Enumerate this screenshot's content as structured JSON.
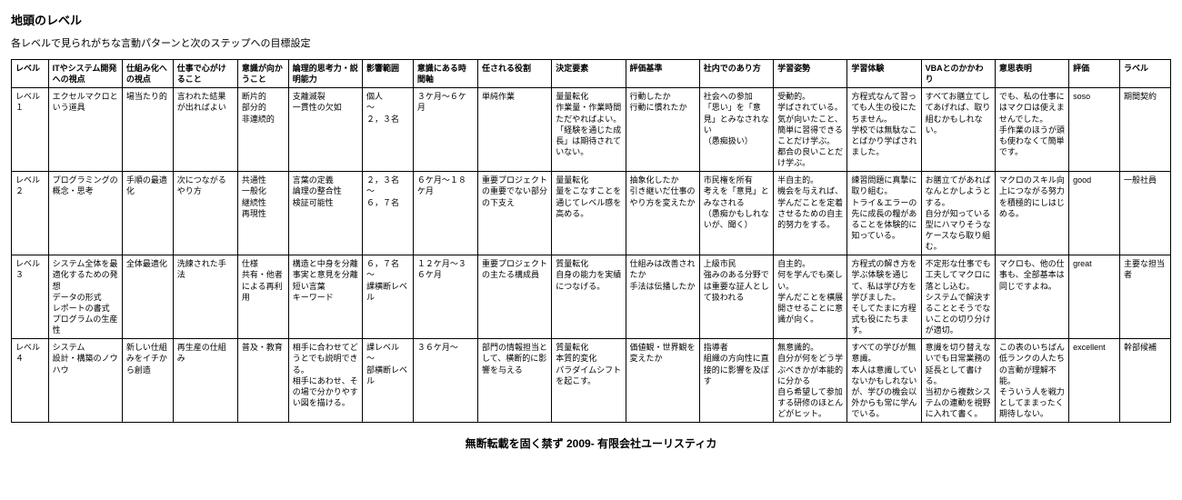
{
  "title": "地頭のレベル",
  "subtitle": "各レベルで見られがちな言動パターンと次のステップへの目標設定",
  "footer": "無断転載を固く禁ず  2009-  有限会社ユーリスティカ",
  "columns": [
    "レベル",
    "ITやシステム開発への視点",
    "仕組み化への視点",
    "仕事で心がけること",
    "意識が向かうこと",
    "論理的思考力・説明能力",
    "影響範囲",
    "意識にある時間軸",
    "任される役割",
    "決定要素",
    "評価基準",
    "社内でのあり方",
    "学習姿勢",
    "学習体験",
    "VBAとのかかわり",
    "意思表明",
    "評価",
    "ラベル"
  ],
  "rows": [
    {
      "cells": [
        "レベル１",
        "エクセルマクロという道具",
        "場当たり的",
        "言われた結果が出ればよい",
        "断片的\n部分的\n非連続的",
        "支離滅裂\n一貫性の欠如",
        "個人\n～\n２，３名",
        "３ケ月～６ケ月",
        "単純作業",
        "量量転化\n作業量・作業時間\nただやればよい。\n「経験を通じた成長」は期待されていない。",
        "行動したか\n行動に慣れたか",
        "社会への参加\n「思い」を「意見」とみなされない\n（愚痴扱い）",
        "受動的。\n学ばされている。\n気が向いたこと、簡単に習得できることだけ学ぶ。\n都合の良いことだけ学ぶ。",
        "方程式なんて習っても人生の役にたちません。\n学校では無駄なことばかり学ばされました。",
        "すべてお膳立てしてあげれば、取り組むかもしれない。",
        "でも、私の仕事にはマクロは使えませんでした。\n手作業のほうが頭も使わなくて簡単です。",
        "soso",
        "期間契約"
      ]
    },
    {
      "cells": [
        "レベル２",
        "プログラミングの概念・思考",
        "手順の最適化",
        "次につながるやり方",
        "共通性\n一般化\n継続性\n再現性",
        "言葉の定義\n論理の整合性\n検証可能性",
        "２，３名\n～\n６，７名",
        "６ケ月～１８ケ月",
        "重要プロジェクトの重要でない部分の下支え",
        "量量転化\n量をこなすことを通じてレベル感を高める。",
        "抽象化したか\n引き継いだ仕事のやり方を変えたか",
        "市民権を所有\n考えを「意見」とみなされる\n（愚痴かもしれないが、聞く）",
        "半自主的。\n機会を与えれば、学んだことを定着させるための自主的努力をする。",
        "練習問題に真摯に取り組む。\nトライ＆エラーの先に成長の糧があることを体験的に知っている。",
        "お膳立てがあればなんとかしようとする。\n自分が知っている型にハマりそうなケースなら取り組む。",
        "マクロのスキル向上につながる努力を積極的にしはじめる。",
        "good",
        "一般社員"
      ]
    },
    {
      "cells": [
        "レベル３",
        "システム全体を最適化するための発想\nデータの形式\nレポートの書式\nプログラムの生産性",
        "全体最適化",
        "洗練された手法",
        "仕様\n共有・他者による再利用",
        "構造と中身を分離\n事実と意見を分離\n短い言葉\nキーワード",
        "６，７名\n～\n課横断レベル",
        "１２ケ月～３６ケ月",
        "重要プロジェクトの主たる構成員",
        "質量転化\n自身の能力を実績につなげる。",
        "仕組みは改善されたか\n手法は伝播したか",
        "上級市民\n強みのある分野では重要な証人として扱われる",
        "自主的。\n何を学んでも楽しい。\n学んだことを横展開させることに意識が向く。",
        "方程式の解き方を学ぶ体験を通じて、私は学び方を学びました。\nそしてたまに方程式も役にたちます。",
        "不定形な仕事でも工夫してマクロに落とし込む。\nシステムで解決することとそうでないことの切り分けが適切。",
        "マクロも、他の仕事も、全部基本は同じですよね。",
        "great",
        "主要な担当者"
      ]
    },
    {
      "cells": [
        "レベル４",
        "システム\n設計・構築のノウハウ",
        "新しい仕組みをイチから創造",
        "再生産の仕組み",
        "普及・教育",
        "相手に合わせてどうとでも説明できる。\n相手にあわせ、その場で分かりやすい図を描ける。",
        "課レベル\n～\n部横断レベル",
        "３６ケ月～",
        "部門の情報担当として、横断的に影響を与える",
        "質量転化\n本質的変化\nパラダイムシフトを起こす。",
        "価値観・世界観を変えたか",
        "指導者\n組織の方向性に直接的に影響を及ぼす",
        "無意識的。\n自分が何をどう学ぶべきかが本能的に分かる\n自ら希望して参加する研修のほとんどがヒット。",
        "すべての学びが無意識。\n本人は意識していないかもしれないが、学びの機会以外からも常に学んでいる。",
        "意識を切り替えないでも日常業務の延長として書ける。\n当初から複数システムの連動を視野に入れて書く。",
        "この表のいちばん低ランクの人たちの言動が理解不能。\nそういう人を戦力としてままったく期待しない。",
        "excellent",
        "幹部候補"
      ]
    }
  ]
}
